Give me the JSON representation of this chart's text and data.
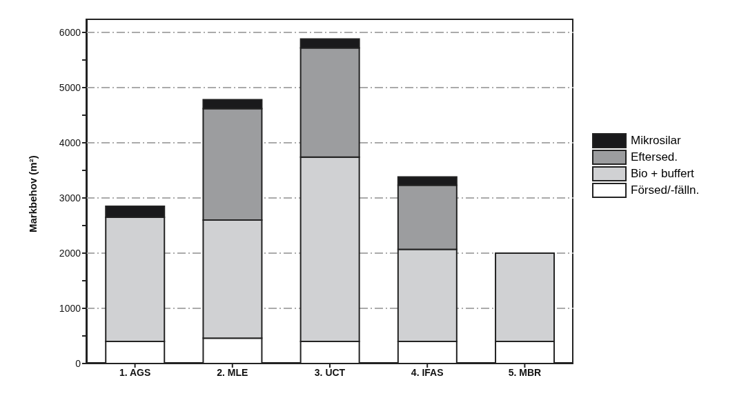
{
  "chart_data": {
    "type": "bar",
    "stacked": true,
    "ylabel": "Markbehov (m²)",
    "categories": [
      "1. AGS",
      "2. MLE",
      "3. UCT",
      "4. IFAS",
      "5. MBR"
    ],
    "series": [
      {
        "name": "Försed/-fälln.",
        "color": "#ffffff",
        "values": [
          400,
          460,
          400,
          400,
          400
        ]
      },
      {
        "name": "Bio + buffert",
        "color": "#d0d1d3",
        "values": [
          2250,
          2140,
          3340,
          1670,
          1600
        ]
      },
      {
        "name": "Eftersed.",
        "color": "#9c9d9f",
        "values": [
          null,
          2020,
          1980,
          1160,
          null
        ]
      },
      {
        "name": "Mikrosilar",
        "color": "#1a1a1c",
        "values": [
          200,
          160,
          160,
          150,
          null
        ]
      }
    ],
    "ylim": [
      0,
      6250
    ],
    "yticks": [
      0,
      {
        "value": 500,
        "label": null
      },
      1000,
      {
        "value": 1500,
        "label": null
      },
      2000,
      {
        "value": 2500,
        "label": null
      },
      3000,
      {
        "value": 3500,
        "label": null
      },
      4000,
      {
        "value": 4500,
        "label": null
      },
      5000,
      {
        "value": 5500,
        "label": null
      },
      6000
    ],
    "grid": "y",
    "legend": "right"
  }
}
